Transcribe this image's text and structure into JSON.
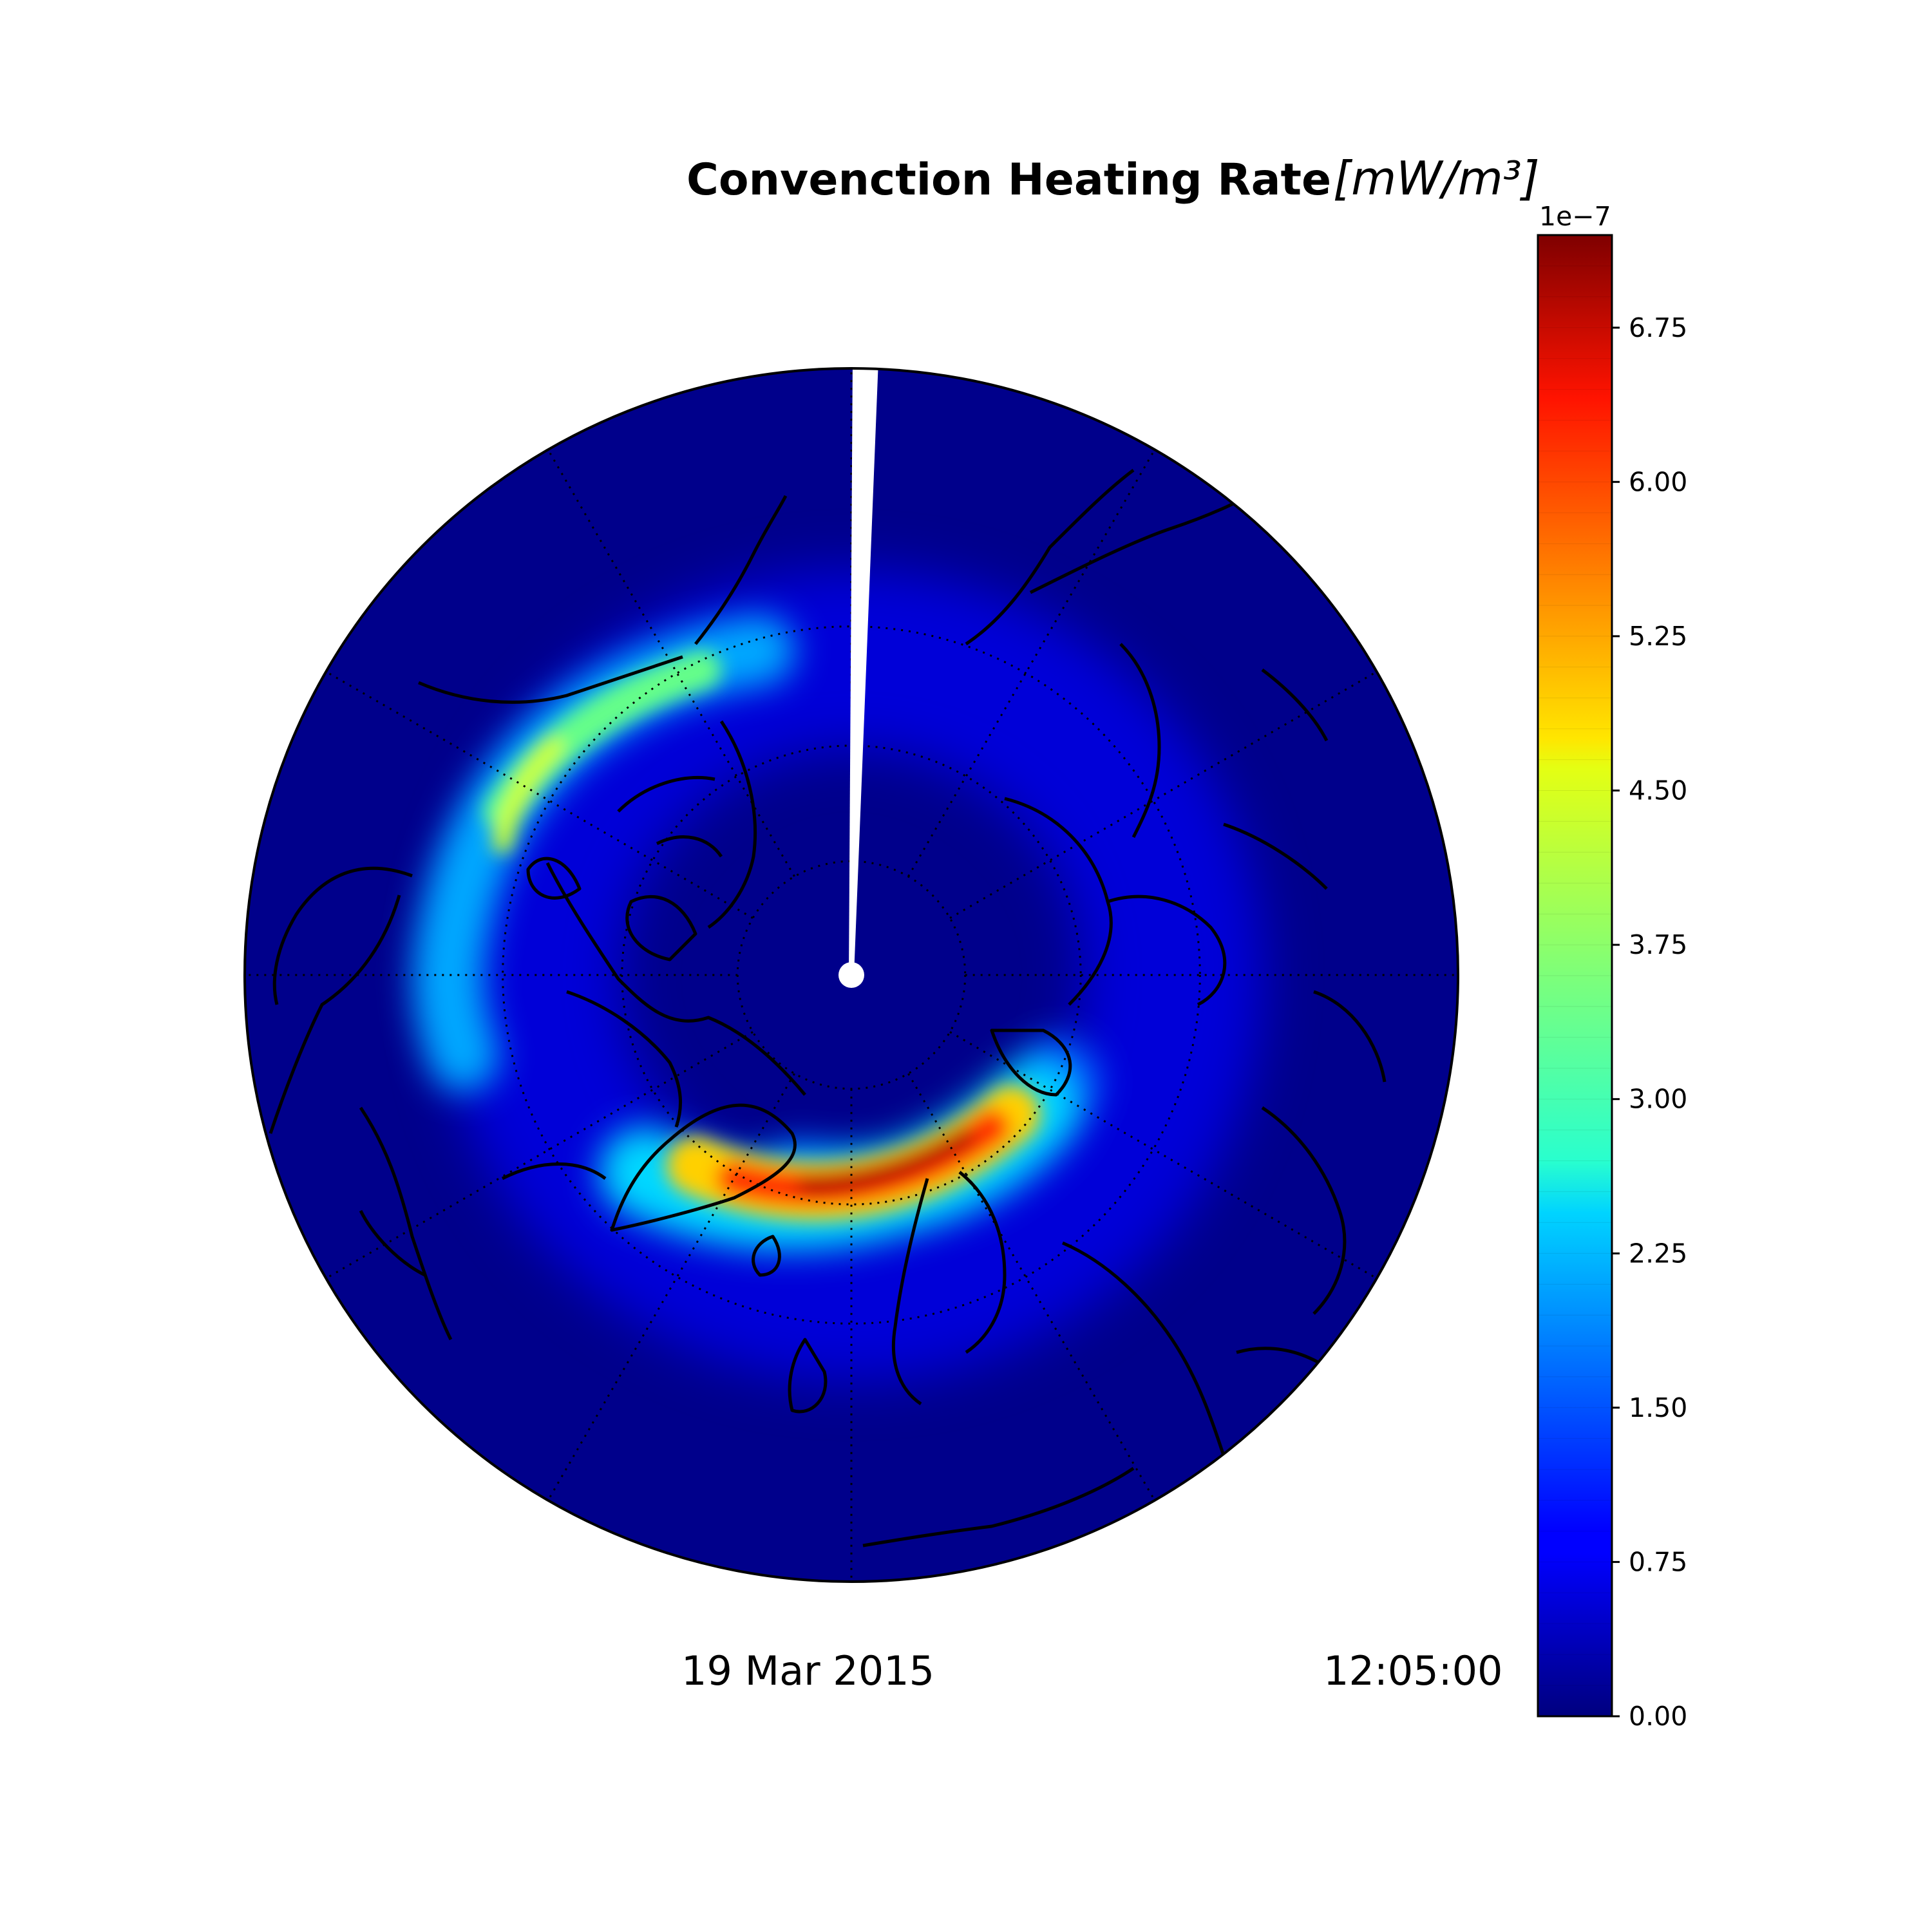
{
  "title": {
    "text": "Convenction Heating Rate",
    "unit": "[mW/m³]"
  },
  "date": "19 Mar 2015",
  "time": "12:05:00",
  "colorbar": {
    "exponent_label": "1e−7",
    "min": 0.0,
    "max": 7.2,
    "levels": 48,
    "colormap": "jet",
    "ticks": [
      "0.00",
      "0.75",
      "1.50",
      "2.25",
      "3.00",
      "3.75",
      "4.50",
      "5.25",
      "6.00",
      "6.75"
    ]
  },
  "map": {
    "projection": "north polar stereographic",
    "background_color": "#00008b",
    "graticule": {
      "meridian_step_deg": 30,
      "parallels_deg": [
        80,
        70,
        60
      ],
      "style": "dotted"
    },
    "coastlines": "black",
    "no_data_wedge": "white, at 12:00 local time (top)",
    "features": [
      {
        "name": "auroral oval",
        "description": "ring of heating around the pole, mostly blue, with light blue / green segment on the dusk side"
      },
      {
        "name": "peak region",
        "description": "narrow band below pole reaching red/dark red near 7e-7"
      }
    ]
  },
  "chart_data": {
    "type": "heatmap",
    "title": "Convenction Heating Rate",
    "unit": "[mW/m³]",
    "scale_factor": "1e−7",
    "value_range": [
      0.0,
      7.2
    ],
    "colorbar_ticks": [
      0.0,
      0.75,
      1.5,
      2.25,
      3.0,
      3.75,
      4.5,
      5.25,
      6.0,
      6.75
    ],
    "date": "19 Mar 2015",
    "time": "12:05:00"
  }
}
